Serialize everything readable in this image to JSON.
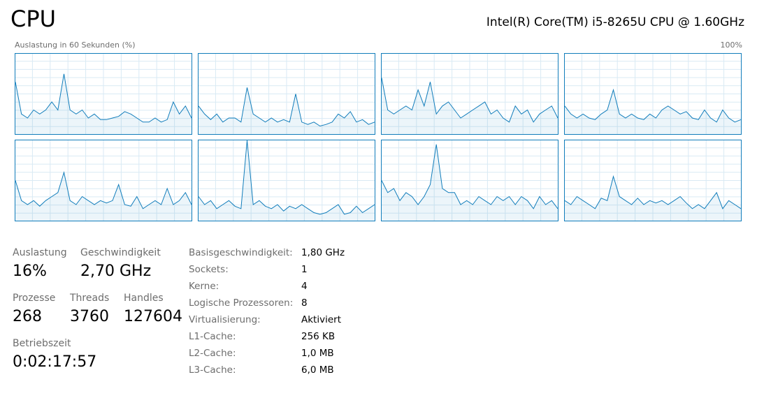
{
  "header": {
    "title": "CPU",
    "cpu_name": "Intel(R) Core(TM) i5-8265U CPU @ 1.60GHz",
    "graph_label": "Auslastung in 60 Sekunden (%)",
    "graph_max": "100%"
  },
  "chart_data": [
    {
      "type": "line",
      "ylim": [
        0,
        100
      ],
      "color": "#117dbb",
      "values": [
        65,
        25,
        20,
        30,
        25,
        30,
        40,
        30,
        75,
        30,
        25,
        30,
        20,
        25,
        18,
        18,
        20,
        22,
        28,
        25,
        20,
        15,
        15,
        20,
        15,
        18,
        40,
        25,
        35,
        20
      ]
    },
    {
      "type": "line",
      "ylim": [
        0,
        100
      ],
      "color": "#117dbb",
      "values": [
        35,
        25,
        18,
        25,
        15,
        20,
        20,
        15,
        58,
        25,
        20,
        15,
        20,
        15,
        18,
        15,
        50,
        15,
        12,
        15,
        10,
        12,
        15,
        25,
        20,
        28,
        15,
        18,
        12,
        15
      ]
    },
    {
      "type": "line",
      "ylim": [
        0,
        100
      ],
      "color": "#117dbb",
      "values": [
        70,
        30,
        25,
        30,
        35,
        30,
        55,
        35,
        65,
        25,
        35,
        40,
        30,
        20,
        25,
        30,
        35,
        40,
        25,
        30,
        20,
        15,
        35,
        25,
        30,
        15,
        25,
        30,
        35,
        20
      ]
    },
    {
      "type": "line",
      "ylim": [
        0,
        100
      ],
      "color": "#117dbb",
      "values": [
        35,
        25,
        20,
        25,
        20,
        18,
        25,
        30,
        55,
        25,
        20,
        25,
        20,
        18,
        25,
        20,
        30,
        35,
        30,
        25,
        28,
        20,
        18,
        30,
        20,
        15,
        30,
        20,
        15,
        18
      ]
    },
    {
      "type": "line",
      "ylim": [
        0,
        100
      ],
      "color": "#117dbb",
      "values": [
        50,
        25,
        20,
        25,
        18,
        25,
        30,
        35,
        60,
        25,
        20,
        30,
        25,
        20,
        25,
        22,
        25,
        45,
        20,
        18,
        30,
        15,
        20,
        25,
        20,
        40,
        20,
        25,
        35,
        20
      ]
    },
    {
      "type": "line",
      "ylim": [
        0,
        100
      ],
      "color": "#117dbb",
      "values": [
        30,
        20,
        25,
        15,
        20,
        25,
        18,
        15,
        100,
        20,
        25,
        18,
        15,
        20,
        12,
        18,
        15,
        20,
        15,
        10,
        8,
        10,
        15,
        20,
        8,
        10,
        18,
        10,
        15,
        20
      ]
    },
    {
      "type": "line",
      "ylim": [
        0,
        100
      ],
      "color": "#117dbb",
      "values": [
        50,
        35,
        40,
        25,
        35,
        30,
        20,
        30,
        45,
        95,
        40,
        35,
        35,
        20,
        25,
        20,
        30,
        25,
        20,
        30,
        25,
        30,
        20,
        30,
        25,
        15,
        30,
        20,
        25,
        15
      ]
    },
    {
      "type": "line",
      "ylim": [
        0,
        100
      ],
      "color": "#117dbb",
      "values": [
        25,
        20,
        30,
        25,
        20,
        15,
        28,
        25,
        55,
        30,
        25,
        20,
        28,
        20,
        25,
        22,
        25,
        20,
        25,
        30,
        22,
        15,
        20,
        15,
        25,
        35,
        15,
        25,
        20,
        15
      ]
    }
  ],
  "stats": [
    {
      "label": "Auslastung",
      "value": "16%"
    },
    {
      "label": "Geschwindigkeit",
      "value": "2,70 GHz"
    },
    {
      "label": "Prozesse",
      "value": "268"
    },
    {
      "label": "Threads",
      "value": "3760"
    },
    {
      "label": "Handles",
      "value": "127604"
    },
    {
      "label": "Betriebszeit",
      "value": "0:02:17:57"
    }
  ],
  "specs": [
    {
      "label": "Basisgeschwindigkeit:",
      "value": "1,80 GHz"
    },
    {
      "label": "Sockets:",
      "value": "1"
    },
    {
      "label": "Kerne:",
      "value": "4"
    },
    {
      "label": "Logische Prozessoren:",
      "value": "8"
    },
    {
      "label": "Virtualisierung:",
      "value": "Aktiviert"
    },
    {
      "label": "L1-Cache:",
      "value": "256 KB"
    },
    {
      "label": "L2-Cache:",
      "value": "1,0 MB"
    },
    {
      "label": "L3-Cache:",
      "value": "6,0 MB"
    }
  ]
}
